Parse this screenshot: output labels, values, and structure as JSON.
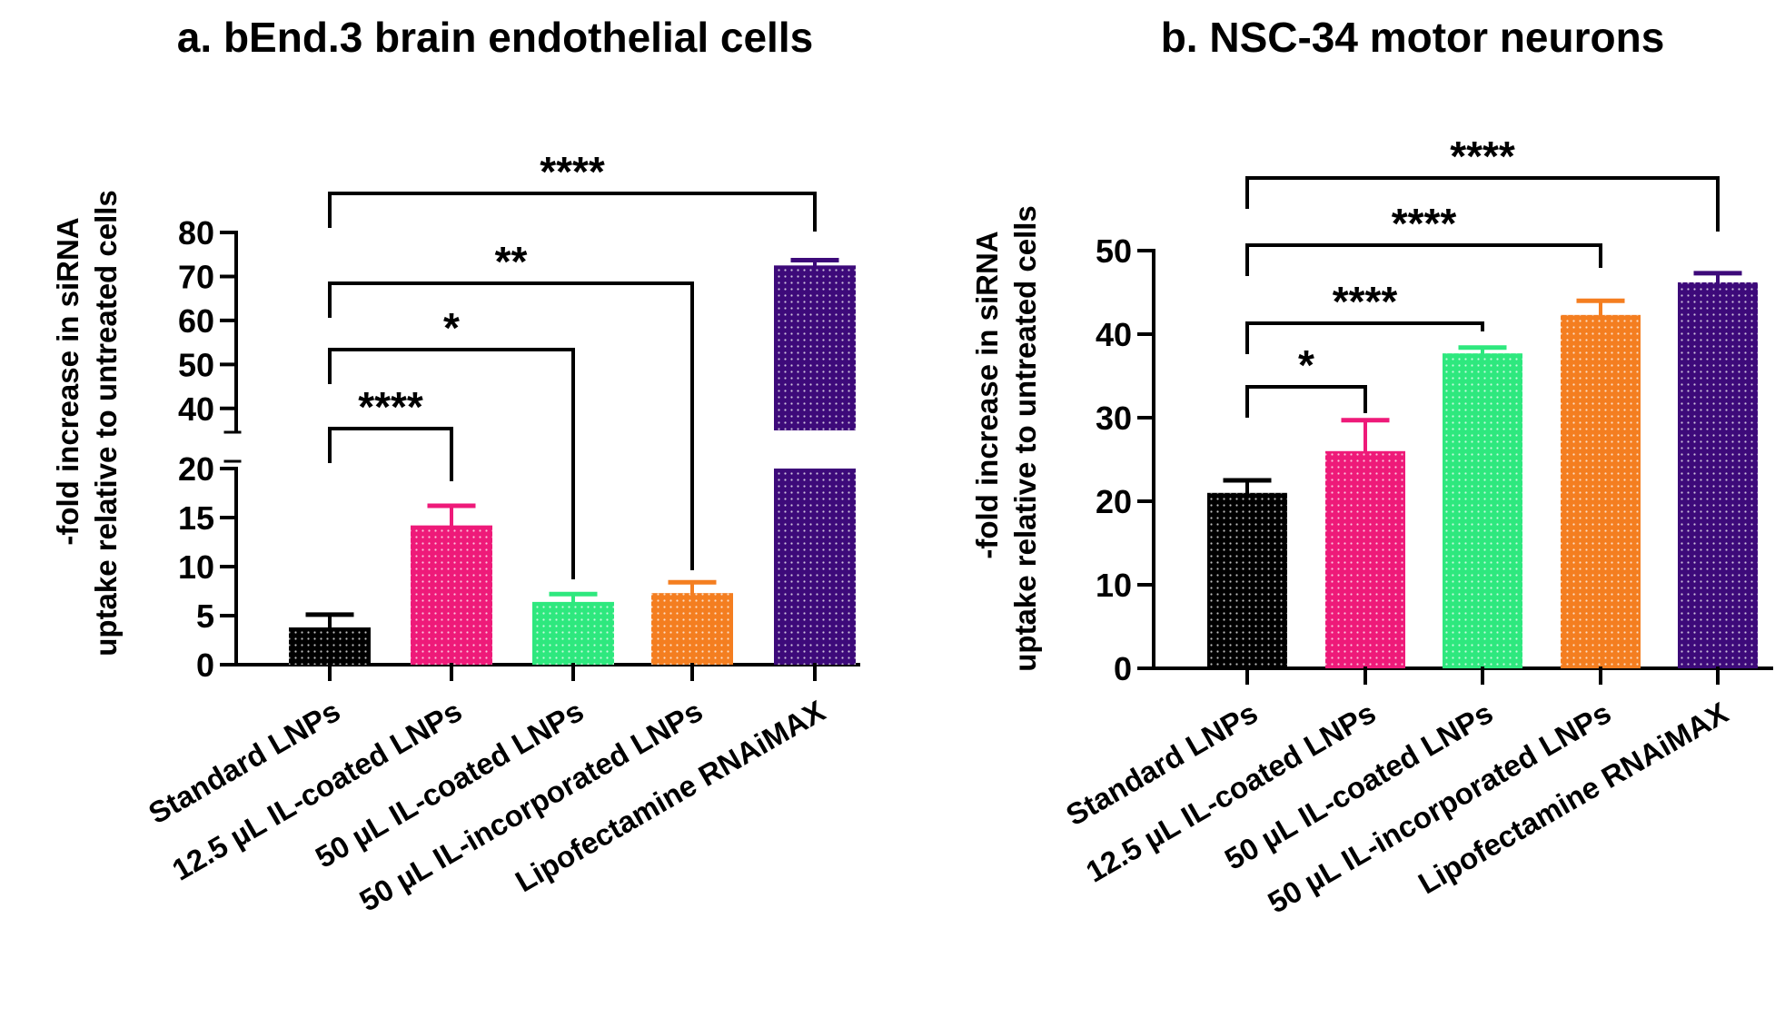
{
  "chart_data": [
    {
      "type": "bar",
      "title": "a. bEnd.3 brain endothelial cells",
      "ylabel_lines": [
        "-fold increase in siRNA",
        "uptake relative to untreated cells"
      ],
      "categories": [
        "Standard LNPs",
        "12.5 µL IL-coated LNPs",
        "50 µL IL-coated LNPs",
        "50 µL IL-incorporated LNPs",
        "Lipofectamine RNAiMAX"
      ],
      "values": [
        3.8,
        14.2,
        6.4,
        7.3,
        72.5
      ],
      "errors": [
        1.3,
        2.0,
        0.8,
        1.1,
        1.2
      ],
      "colors": [
        "#000000",
        "#ee1a79",
        "#2ee87e",
        "#f47e20",
        "#3d0a7a"
      ],
      "y_axis_break": {
        "lower": [
          0,
          20
        ],
        "upper": [
          35,
          80
        ]
      },
      "yticks_lower": [
        "0",
        "5",
        "10",
        "15",
        "20"
      ],
      "yticks_upper": [
        "40",
        "50",
        "60",
        "70",
        "80"
      ],
      "significance": [
        {
          "from": 0,
          "to": 1,
          "label": "****"
        },
        {
          "from": 0,
          "to": 2,
          "label": "*"
        },
        {
          "from": 0,
          "to": 3,
          "label": "**"
        },
        {
          "from": 0,
          "to": 4,
          "label": "****"
        }
      ]
    },
    {
      "type": "bar",
      "title": "b. NSC-34 motor neurons",
      "ylabel_lines": [
        "-fold increase in siRNA",
        "uptake relative to untreated cells"
      ],
      "categories": [
        "Standard LNPs",
        "12.5 µL IL-coated LNPs",
        "50 µL IL-coated LNPs",
        "50 µL IL-incorporated LNPs",
        "Lipofectamine RNAiMAX"
      ],
      "values": [
        21.0,
        26.0,
        37.7,
        42.3,
        46.2
      ],
      "errors": [
        1.5,
        3.7,
        0.7,
        1.7,
        1.1
      ],
      "colors": [
        "#000000",
        "#ee1a79",
        "#2ee87e",
        "#f47e20",
        "#3d0a7a"
      ],
      "ylim": [
        0,
        50
      ],
      "yticks": [
        "0",
        "10",
        "20",
        "30",
        "40",
        "50"
      ],
      "significance": [
        {
          "from": 0,
          "to": 1,
          "label": "*"
        },
        {
          "from": 0,
          "to": 2,
          "label": "****"
        },
        {
          "from": 0,
          "to": 3,
          "label": "****"
        },
        {
          "from": 0,
          "to": 4,
          "label": "****"
        }
      ]
    }
  ]
}
